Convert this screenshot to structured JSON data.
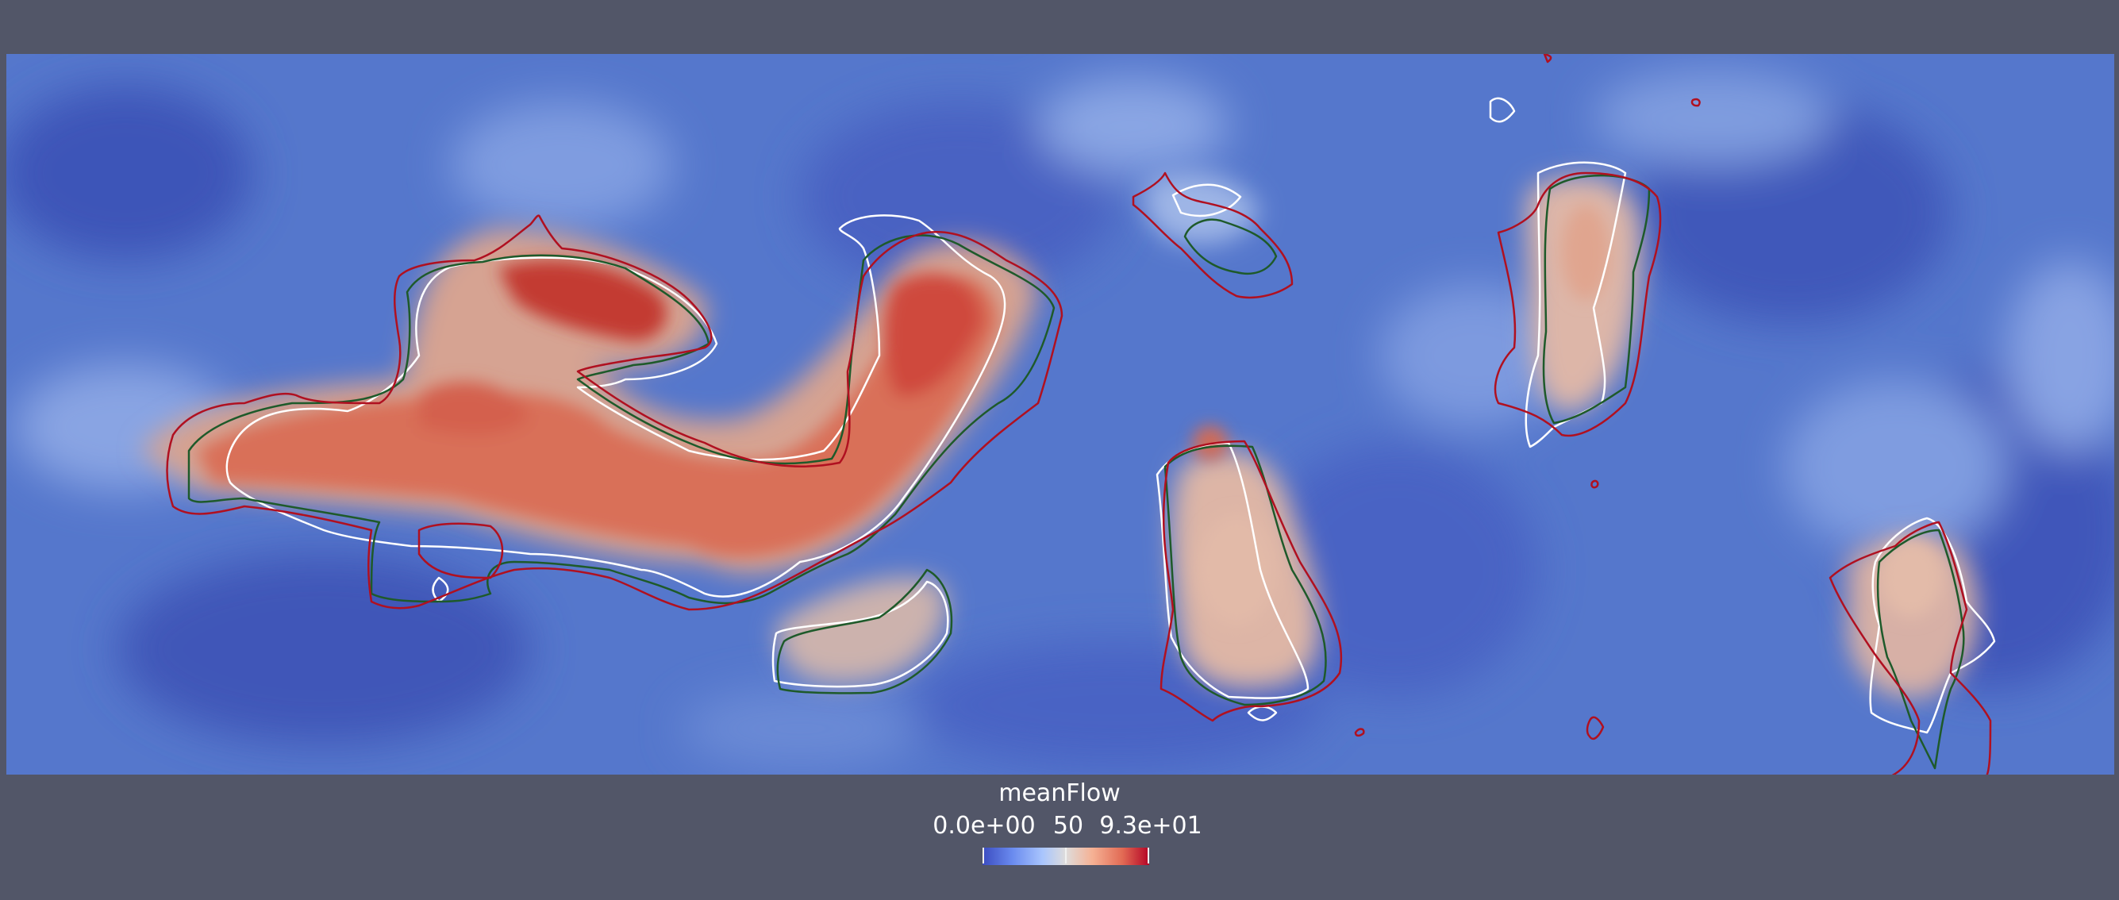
{
  "colorbar": {
    "title": "meanFlow",
    "tick_min": "0.0e+00",
    "tick_mid": "50",
    "tick_max": "9.3e+01"
  },
  "colors": {
    "background": "#525668",
    "field_low": "#3b4cc0",
    "field_mid": "#dedcdb",
    "field_high": "#b40426",
    "contour_white": "#ffffff",
    "contour_green": "#1e5a2a",
    "contour_red": "#b01020"
  }
}
